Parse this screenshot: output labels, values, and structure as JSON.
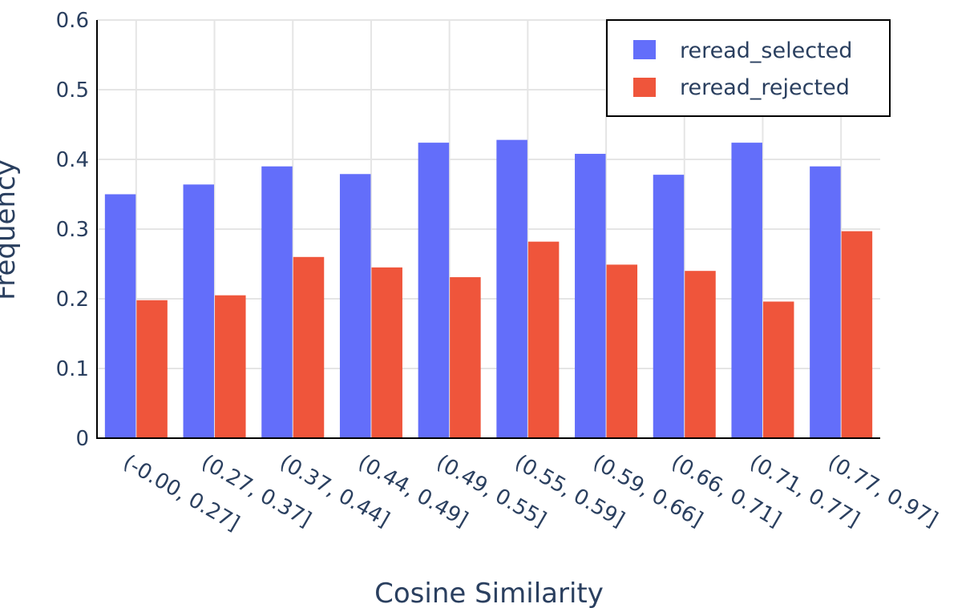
{
  "chart_data": {
    "type": "bar",
    "title": "",
    "xlabel": "Cosine Similarity",
    "ylabel": "Frequency",
    "ylim": [
      0,
      0.6
    ],
    "yticks": [
      "0",
      "0.1",
      "0.2",
      "0.3",
      "0.4",
      "0.5",
      "0.6"
    ],
    "grid": true,
    "legend_position": "top-right",
    "categories": [
      "(-0.00, 0.27]",
      "(0.27, 0.37]",
      "(0.37, 0.44]",
      "(0.44, 0.49]",
      "(0.49, 0.55]",
      "(0.55, 0.59]",
      "(0.59, 0.66]",
      "(0.66, 0.71]",
      "(0.71, 0.77]",
      "(0.77, 0.97]"
    ],
    "series": [
      {
        "name": "reread_selected",
        "color": "#636efa",
        "values": [
          0.35,
          0.364,
          0.39,
          0.379,
          0.424,
          0.428,
          0.408,
          0.378,
          0.424,
          0.39
        ]
      },
      {
        "name": "reread_rejected",
        "color": "#ef553b",
        "values": [
          0.198,
          0.205,
          0.26,
          0.245,
          0.231,
          0.282,
          0.249,
          0.24,
          0.196,
          0.297
        ]
      }
    ]
  }
}
